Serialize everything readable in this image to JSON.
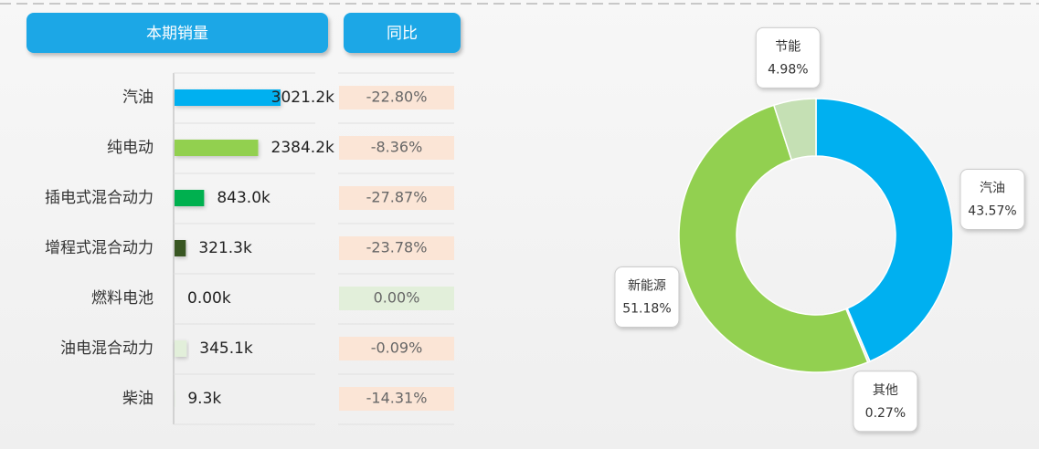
{
  "chart_data": [
    {
      "type": "bar",
      "orientation": "horizontal",
      "title": "本期销量",
      "categories": [
        "汽油",
        "纯电动",
        "插电式混合动力",
        "增程式混合动力",
        "燃料电池",
        "油电混合动力",
        "柴油"
      ],
      "values": [
        3021.2,
        2384.2,
        843.0,
        321.3,
        0,
        345.1,
        9.3
      ],
      "value_labels": [
        "3021.2k",
        "2384.2k",
        "843.0k",
        "321.3k",
        "0.00k",
        "345.1k",
        "9.3k"
      ],
      "colors": [
        "#00b0f0",
        "#92d050",
        "#00b050",
        "#375623",
        "#a9d18e",
        "#e2efda",
        "#e2efda"
      ],
      "yoy_title": "同比",
      "yoy": [
        -22.8,
        -8.36,
        -27.87,
        -23.78,
        0,
        -0.09,
        -14.31
      ],
      "yoy_labels": [
        "-22.80%",
        "-8.36%",
        "-27.87%",
        "-23.78%",
        "0.00%",
        "-0.09%",
        "-14.31%"
      ]
    },
    {
      "type": "pie",
      "categories": [
        "汽油",
        "其他",
        "新能源",
        "节能"
      ],
      "values": [
        43.57,
        0.27,
        51.18,
        4.98
      ],
      "value_labels": [
        "43.57%",
        "0.27%",
        "51.18%",
        "4.98%"
      ],
      "colors": [
        "#00b0f0",
        "#e7e6e6",
        "#92d050",
        "#c5e0b4"
      ]
    }
  ]
}
